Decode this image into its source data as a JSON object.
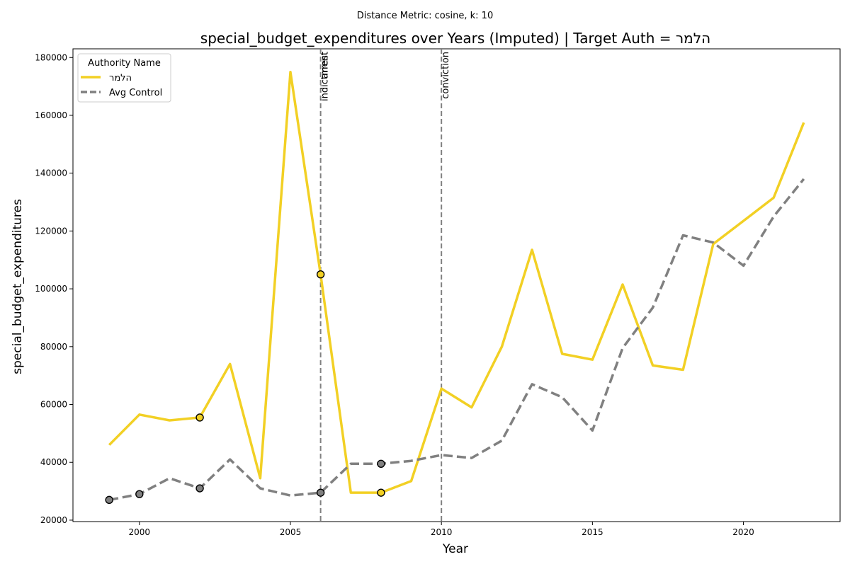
{
  "chart_data": {
    "type": "line",
    "suptitle": "Distance Metric: cosine, k: 10",
    "title": "special_budget_expenditures over Years (Imputed) | Target Auth = הלמר",
    "xlabel": "Year",
    "ylabel": "special_budget_expenditures",
    "xlim": [
      1997.8,
      2023.2
    ],
    "ylim": [
      19500,
      183000
    ],
    "xticks": [
      2000,
      2005,
      2010,
      2015,
      2020
    ],
    "yticks": [
      20000,
      40000,
      60000,
      80000,
      100000,
      120000,
      140000,
      160000,
      180000
    ],
    "grid": false,
    "legend": {
      "title": "Authority Name",
      "placement": "upper-left"
    },
    "x": [
      1999,
      2000,
      2001,
      2002,
      2003,
      2004,
      2005,
      2006,
      2007,
      2008,
      2009,
      2010,
      2011,
      2012,
      2013,
      2014,
      2015,
      2016,
      2017,
      2018,
      2019,
      2020,
      2021,
      2022
    ],
    "series": [
      {
        "name": "הלמר",
        "color": "#f2d024",
        "style": "solid",
        "values": [
          46000,
          56500,
          54500,
          55500,
          74000,
          34500,
          175000,
          105000,
          29500,
          29500,
          33500,
          65500,
          59000,
          80000,
          113500,
          77500,
          75500,
          101500,
          73500,
          72000,
          115500,
          123500,
          131500,
          157500
        ],
        "imputed_years": [
          2002,
          2006,
          2008
        ]
      },
      {
        "name": "Avg Control",
        "color": "#808080",
        "style": "dashed",
        "values": [
          27000,
          29000,
          34500,
          31000,
          41000,
          31000,
          28500,
          29500,
          39500,
          39500,
          40500,
          42500,
          41500,
          47500,
          67000,
          62500,
          51000,
          79500,
          93500,
          118500,
          116000,
          108000,
          125000,
          138000
        ],
        "imputed_years": [
          1999,
          2000,
          2002,
          2006,
          2008
        ]
      }
    ],
    "events": [
      {
        "x": 2006,
        "labels": [
          "indictment",
          "arrest"
        ]
      },
      {
        "x": 2010,
        "labels": [
          "conviction"
        ]
      }
    ]
  }
}
